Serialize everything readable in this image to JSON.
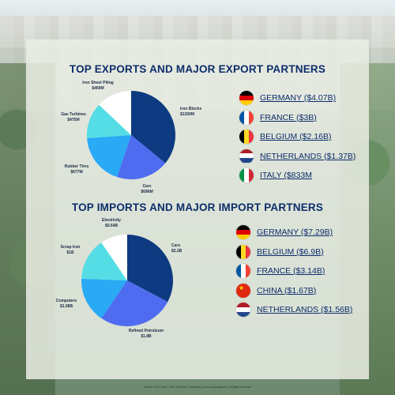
{
  "colors": {
    "dark_navy": "#0d3a80",
    "royal_blue": "#4f6cf0",
    "sky_blue": "#2aa9f5",
    "aqua": "#55dde6",
    "white": "#ffffff",
    "title": "#0c2d6b"
  },
  "exports": {
    "title": "TOP EXPORTS AND MAJOR EXPORT PARTNERS",
    "partners": [
      {
        "label": "GERMANY ($4.07B)",
        "flag": "germany-flag-icon"
      },
      {
        "label": "FRANCE ($3B)",
        "flag": "france-flag-icon"
      },
      {
        "label": "BELGIUM ($2.16B)",
        "flag": "belgium-flag-icon"
      },
      {
        "label": "NETHERLANDS ($1.37B)",
        "flag": "netherlands-flag-icon"
      },
      {
        "label": "ITALY ($833M",
        "flag": "italy-flag-icon"
      }
    ]
  },
  "imports": {
    "title": "TOP IMPORTS AND MAJOR IMPORT PARTNERS",
    "partners": [
      {
        "label": "GERMANY ($7.29B)",
        "flag": "germany-flag-icon"
      },
      {
        "label": "BELGIUM ($6.9B)",
        "flag": "belgium-flag-icon"
      },
      {
        "label": "FRANCE ($3.14B)",
        "flag": "france-flag-icon"
      },
      {
        "label": "CHINA ($1.67B)",
        "flag": "china-flag-icon"
      },
      {
        "label": "NETHERLANDS ($1.56B)",
        "flag": "netherlands-flag-icon"
      }
    ]
  },
  "footer": "Source: 2017 data / OEC Exclusive Compactly, www.compactly.com, All rights reserved",
  "chart_data": [
    {
      "type": "pie",
      "title": "TOP EXPORTS AND MAJOR EXPORT PARTNERS",
      "categories": [
        "Iron Blocks",
        "Cars",
        "Rubber Tires",
        "Gas Turbines",
        "Iron Sheet Piling"
      ],
      "value_labels": [
        "$1300M",
        "$696M",
        "$677M",
        "$475M",
        "$469M"
      ],
      "values": [
        1300,
        696,
        677,
        475,
        469
      ],
      "colors": [
        "#0d3a80",
        "#4f6cf0",
        "#2aa9f5",
        "#55dde6",
        "#ffffff"
      ]
    },
    {
      "type": "pie",
      "title": "TOP IMPORTS AND MAJOR IMPORT PARTNERS",
      "categories": [
        "Cars",
        "Refined Petroleum",
        "Computers",
        "Scrap Iron",
        "Electricity"
      ],
      "value_labels": [
        "$2.2B",
        "$1.8B",
        "$1.08B",
        "$1B",
        "$0.64B"
      ],
      "values": [
        2.2,
        1.8,
        1.08,
        1.0,
        0.64
      ],
      "colors": [
        "#0d3a80",
        "#4f6cf0",
        "#2aa9f5",
        "#55dde6",
        "#ffffff"
      ]
    }
  ]
}
